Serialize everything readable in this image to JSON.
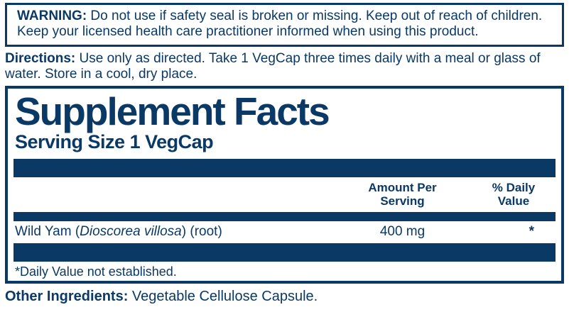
{
  "colors": {
    "navy": "#0a3966",
    "background": "#ffffff"
  },
  "warning": {
    "label": "WARNING:",
    "text": " Do not use if safety seal is broken or missing. Keep out of reach of children. Keep your licensed health care practitioner informed when using this product."
  },
  "directions": {
    "label": "Directions:",
    "text": " Use only as directed. Take 1 VegCap three times daily with a meal or glass of water. Store in a cool, dry place."
  },
  "supplement_facts": {
    "title": "Supplement Facts",
    "serving_size": "Serving Size 1 VegCap",
    "columns": {
      "amount": "Amount Per Serving",
      "daily_value": "% Daily Value"
    },
    "rows": [
      {
        "name_prefix": "Wild Yam (",
        "name_latin": "Dioscorea villosa",
        "name_suffix": ") (root)",
        "amount": "400 mg",
        "daily_value": "*"
      }
    ],
    "footnote": "*Daily Value not established."
  },
  "other_ingredients": {
    "label": "Other Ingredients:",
    "text": " Vegetable Cellulose Capsule."
  }
}
